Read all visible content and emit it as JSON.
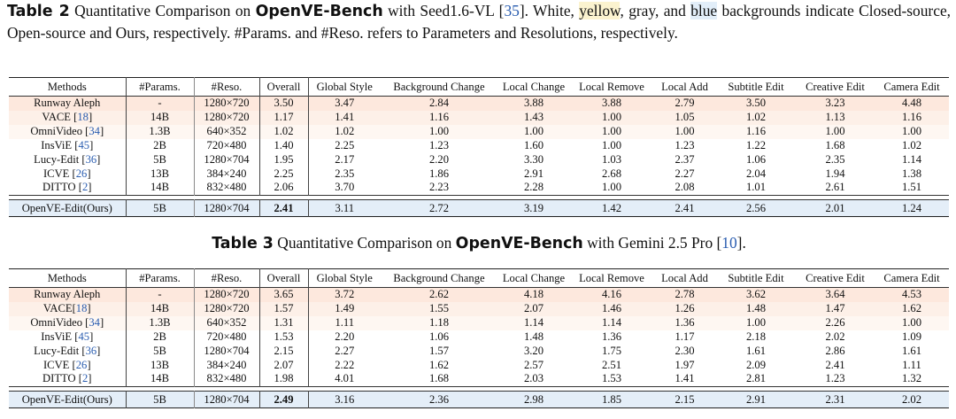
{
  "table2": {
    "caption": {
      "label": "Table 2",
      "pre": " Quantitative Comparison on ",
      "bench": "OpenVE-Bench",
      "mid": " with Seed1.6-VL [",
      "ref": "35",
      "post": "]. White, ",
      "yellow_word": "yellow",
      "post2": ", gray, and ",
      "blue_word": "blue",
      "post3": " backgrounds indicate Closed-source, Open-source and Ours, respectively. #Params. and #Reso. refers to Parameters and Resolutions, respectively."
    },
    "headers": [
      "Methods",
      "#Params.",
      "#Reso.",
      "Overall",
      "Global Style",
      "Background Change",
      "Local Change",
      "Local Remove",
      "Local Add",
      "Subtitle Edit",
      "Creative Edit",
      "Camera Edit"
    ],
    "rows": [
      {
        "method": "Runway Aleph",
        "ref": "",
        "params": "-",
        "reso": "1280×720",
        "overall": "3.50",
        "vals": [
          "3.47",
          "2.84",
          "3.88",
          "3.88",
          "2.79",
          "3.50",
          "3.23",
          "4.48"
        ]
      },
      {
        "method": "VACE ",
        "ref": "18",
        "params": "14B",
        "reso": "1280×720",
        "overall": "1.17",
        "vals": [
          "1.41",
          "1.16",
          "1.43",
          "1.00",
          "1.05",
          "1.02",
          "1.13",
          "1.16"
        ]
      },
      {
        "method": "OmniVideo ",
        "ref": "34",
        "params": "1.3B",
        "reso": "640×352",
        "overall": "1.02",
        "vals": [
          "1.02",
          "1.00",
          "1.00",
          "1.00",
          "1.00",
          "1.16",
          "1.00",
          "1.00"
        ]
      },
      {
        "method": "InsViE ",
        "ref": "45",
        "params": "2B",
        "reso": "720×480",
        "overall": "1.40",
        "vals": [
          "2.25",
          "1.23",
          "1.60",
          "1.00",
          "1.23",
          "1.22",
          "1.68",
          "1.02"
        ]
      },
      {
        "method": "Lucy-Edit ",
        "ref": "36",
        "params": "5B",
        "reso": "1280×704",
        "overall": "1.95",
        "vals": [
          "2.17",
          "2.20",
          "3.30",
          "1.03",
          "2.37",
          "1.06",
          "2.35",
          "1.14"
        ]
      },
      {
        "method": "ICVE ",
        "ref": "26",
        "params": "13B",
        "reso": "384×240",
        "overall": "2.25",
        "vals": [
          "2.35",
          "1.86",
          "2.91",
          "2.68",
          "2.27",
          "2.04",
          "1.94",
          "1.38"
        ]
      },
      {
        "method": "DITTO ",
        "ref": "2",
        "params": "14B",
        "reso": "832×480",
        "overall": "2.06",
        "vals": [
          "3.70",
          "2.23",
          "2.28",
          "1.00",
          "2.08",
          "1.01",
          "2.61",
          "1.51"
        ]
      }
    ],
    "ours": {
      "method": "OpenVE-Edit(Ours)",
      "params": "5B",
      "reso": "1280×704",
      "overall": "2.41",
      "vals": [
        "3.11",
        "2.72",
        "3.19",
        "1.42",
        "2.41",
        "2.56",
        "2.01",
        "1.24"
      ]
    }
  },
  "table3": {
    "caption": {
      "label": "Table 3",
      "pre": " Quantitative Comparison on ",
      "bench": "OpenVE-Bench",
      "mid": " with Gemini 2.5 Pro [",
      "ref": "10",
      "post": "]."
    },
    "headers": [
      "Methods",
      "#Params.",
      "#Reso.",
      "Overall",
      "Global Style",
      "Background Change",
      "Local Change",
      "Local Remove",
      "Local Add",
      "Subtitle Edit",
      "Creative Edit",
      "Camera Edit"
    ],
    "rows": [
      {
        "method": "Runway Aleph",
        "ref": "",
        "params": "-",
        "reso": "1280×720",
        "overall": "3.65",
        "vals": [
          "3.72",
          "2.62",
          "4.18",
          "4.16",
          "2.78",
          "3.62",
          "3.64",
          "4.53"
        ]
      },
      {
        "method": "VACE",
        "ref": "18",
        "params": "14B",
        "reso": "1280×720",
        "overall": "1.57",
        "vals": [
          "1.49",
          "1.55",
          "2.07",
          "1.46",
          "1.26",
          "1.48",
          "1.47",
          "1.62"
        ]
      },
      {
        "method": "OmniVideo ",
        "ref": "34",
        "params": "1.3B",
        "reso": "640×352",
        "overall": "1.31",
        "vals": [
          "1.11",
          "1.18",
          "1.14",
          "1.14",
          "1.36",
          "1.00",
          "2.26",
          "1.00"
        ]
      },
      {
        "method": "InsViE ",
        "ref": "45",
        "params": "2B",
        "reso": "720×480",
        "overall": "1.53",
        "vals": [
          "2.20",
          "1.06",
          "1.48",
          "1.36",
          "1.17",
          "2.18",
          "2.02",
          "1.09"
        ]
      },
      {
        "method": "Lucy-Edit ",
        "ref": "36",
        "params": "5B",
        "reso": "1280×704",
        "overall": "2.15",
        "vals": [
          "2.27",
          "1.57",
          "3.20",
          "1.75",
          "2.30",
          "1.61",
          "2.86",
          "1.61"
        ]
      },
      {
        "method": "ICVE ",
        "ref": "26",
        "params": "13B",
        "reso": "384×240",
        "overall": "2.07",
        "vals": [
          "2.22",
          "1.62",
          "2.57",
          "2.51",
          "1.97",
          "2.09",
          "2.41",
          "1.11"
        ]
      },
      {
        "method": "DITTO ",
        "ref": "2",
        "params": "14B",
        "reso": "832×480",
        "overall": "1.98",
        "vals": [
          "4.01",
          "1.68",
          "2.03",
          "1.53",
          "1.41",
          "2.81",
          "1.23",
          "1.32"
        ]
      }
    ],
    "ours": {
      "method": "OpenVE-Edit(Ours)",
      "params": "5B",
      "reso": "1280×704",
      "overall": "2.49",
      "vals": [
        "3.16",
        "2.36",
        "2.98",
        "1.85",
        "2.15",
        "2.91",
        "2.31",
        "2.02"
      ]
    }
  }
}
